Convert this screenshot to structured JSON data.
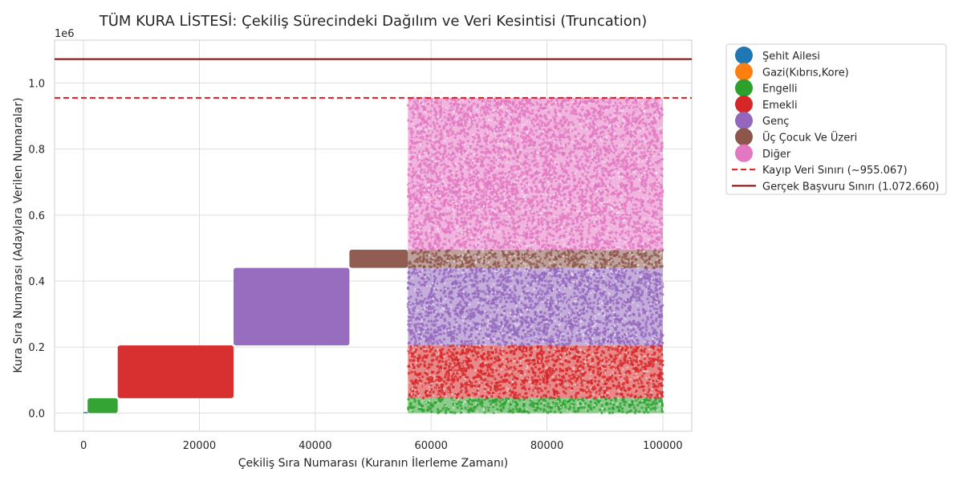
{
  "chart_data": {
    "type": "scatter",
    "title": "TÜM KURA LİSTESİ: Çekiliş Sürecindeki Dağılım ve Veri Kesintisi (Truncation)",
    "xlabel": "Çekiliş Sıra Numarası (Kuranın İlerleme Zamanı)",
    "ylabel": "Kura Sıra Numarası (Adaylara Verilen Numaralar)",
    "y_offset_label": "1e6",
    "xlim": [
      -5000,
      105000
    ],
    "ylim": [
      -55000,
      1130000
    ],
    "x_ticks": [
      0,
      20000,
      40000,
      60000,
      80000,
      100000
    ],
    "x_tick_labels": [
      "0",
      "20000",
      "40000",
      "60000",
      "80000",
      "100000"
    ],
    "y_ticks": [
      0,
      200000,
      400000,
      600000,
      800000,
      1000000
    ],
    "y_tick_labels": [
      "0.0",
      "0.2",
      "0.4",
      "0.6",
      "0.8",
      "1.0"
    ],
    "grid": true,
    "legend_position": "outside-right",
    "series": [
      {
        "name": "Şehit Ailesi",
        "color": "#1f77b4",
        "regions": [
          {
            "x": [
              0,
              700
            ],
            "y": [
              0,
              3000
            ]
          }
        ]
      },
      {
        "name": "Gazi(Kıbrıs,Kore)",
        "color": "#ff7f0e",
        "regions": [
          {
            "x": [
              700,
              1000
            ],
            "y": [
              3000,
              5000
            ]
          }
        ]
      },
      {
        "name": "Engelli",
        "color": "#2ca02c",
        "regions": [
          {
            "x": [
              700,
              5900
            ],
            "y": [
              0,
              45000
            ]
          },
          {
            "x": [
              56000,
              100000
            ],
            "y": [
              0,
              45000
            ]
          }
        ]
      },
      {
        "name": "Emekli",
        "color": "#d62728",
        "regions": [
          {
            "x": [
              5900,
              25900
            ],
            "y": [
              45000,
              205000
            ]
          },
          {
            "x": [
              56000,
              100000
            ],
            "y": [
              45000,
              205000
            ]
          }
        ]
      },
      {
        "name": "Genç",
        "color": "#9467bd",
        "regions": [
          {
            "x": [
              25900,
              45900
            ],
            "y": [
              205000,
              440000
            ]
          },
          {
            "x": [
              56000,
              100000
            ],
            "y": [
              205000,
              440000
            ]
          }
        ]
      },
      {
        "name": "Üç Çocuk Ve Üzeri",
        "color": "#8c564b",
        "regions": [
          {
            "x": [
              45900,
              56000
            ],
            "y": [
              440000,
              495000
            ]
          },
          {
            "x": [
              56000,
              100000
            ],
            "y": [
              440000,
              495000
            ]
          }
        ]
      },
      {
        "name": "Diğer",
        "color": "#e377c2",
        "regions": [
          {
            "x": [
              56000,
              100000
            ],
            "y": [
              495000,
              955067
            ]
          }
        ]
      }
    ],
    "reference_lines": [
      {
        "name": "Kayıp Veri Sınırı (~955.067)",
        "y": 955067,
        "color": "#e31a1c",
        "style": "dashed"
      },
      {
        "name": "Gerçek Başvuru Sınırı (1.072.660)",
        "y": 1072660,
        "color": "#8b0000",
        "style": "solid"
      }
    ]
  }
}
